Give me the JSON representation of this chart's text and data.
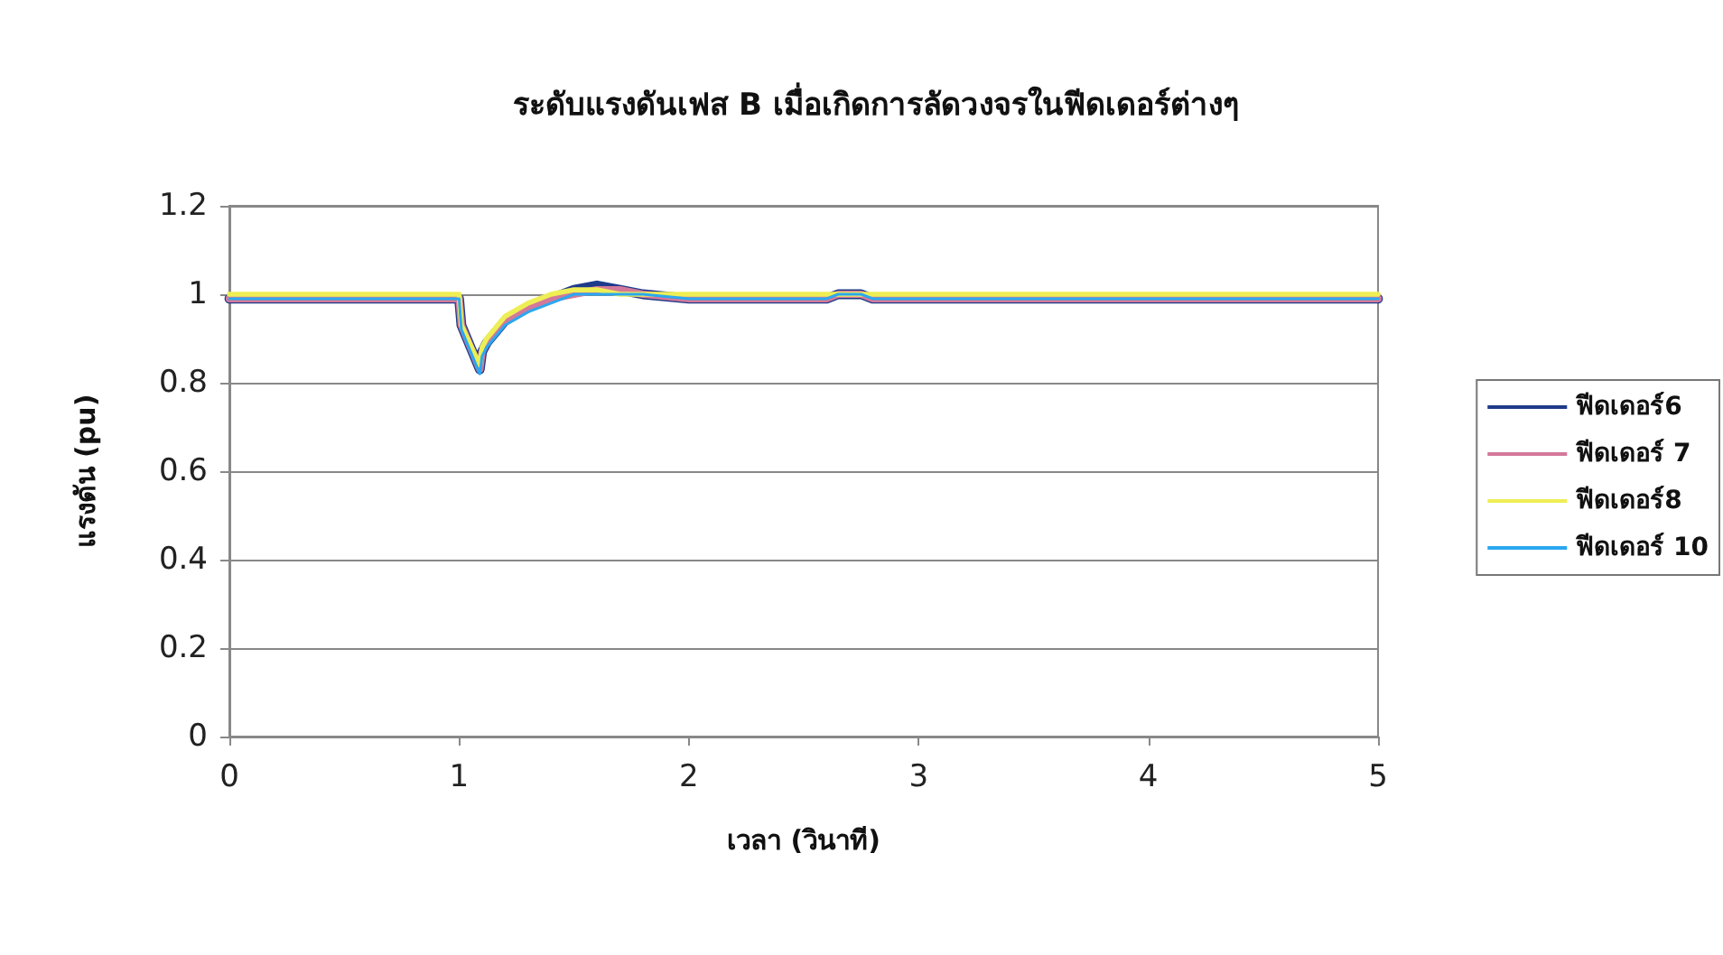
{
  "chart_data": {
    "type": "line",
    "title": "ระดับแรงดันเฟส B เมื่อเกิดการลัดวงจรในฟีดเดอร์ต่างๆ",
    "xlabel": "เวลา (วินาที)",
    "ylabel": "แรงดัน (pu)",
    "x": [
      0,
      1.0,
      1.01,
      1.09,
      1.1,
      1.12,
      1.2,
      1.3,
      1.4,
      1.5,
      1.6,
      1.7,
      1.8,
      2.0,
      2.3,
      2.6,
      2.65,
      2.75,
      2.8,
      3,
      5
    ],
    "series": [
      {
        "name": "ฟีดเดอร์6",
        "color": "#1f3a8a",
        "values": [
          0.99,
          0.99,
          0.93,
          0.83,
          0.87,
          0.89,
          0.94,
          0.97,
          0.99,
          1.01,
          1.02,
          1.01,
          1.0,
          0.99,
          0.99,
          0.99,
          1.0,
          1.0,
          0.99,
          0.99,
          0.99
        ]
      },
      {
        "name": "ฟีดเดอร์ 7",
        "color": "#d4789a",
        "values": [
          0.99,
          0.99,
          0.93,
          0.83,
          0.87,
          0.89,
          0.94,
          0.97,
          0.99,
          1.0,
          1.01,
          1.01,
          1.0,
          0.99,
          0.99,
          0.99,
          1.0,
          1.0,
          0.99,
          0.99,
          0.99
        ]
      },
      {
        "name": "ฟีดเดอร์8",
        "color": "#eeee55",
        "values": [
          1.0,
          1.0,
          0.93,
          0.84,
          0.88,
          0.9,
          0.95,
          0.98,
          1.0,
          1.01,
          1.01,
          1.0,
          1.0,
          1.0,
          1.0,
          1.0,
          1.0,
          1.0,
          1.0,
          1.0,
          1.0
        ]
      },
      {
        "name": "ฟีดเดอร์ 10",
        "color": "#2aa8f0",
        "values": [
          0.99,
          0.99,
          0.92,
          0.82,
          0.86,
          0.88,
          0.93,
          0.96,
          0.98,
          1.0,
          1.0,
          1.0,
          1.0,
          0.99,
          0.99,
          0.99,
          1.0,
          1.0,
          0.99,
          0.99,
          0.99
        ]
      }
    ],
    "xlim": [
      0,
      5
    ],
    "xticks": [
      0,
      1,
      2,
      3,
      4,
      5
    ],
    "ylim": [
      0,
      1.2
    ],
    "yticks": [
      0,
      0.2,
      0.4,
      0.6,
      0.8,
      1,
      1.2
    ],
    "grid": "y",
    "legend": "right",
    "marker": "none",
    "line_style": "solid"
  }
}
